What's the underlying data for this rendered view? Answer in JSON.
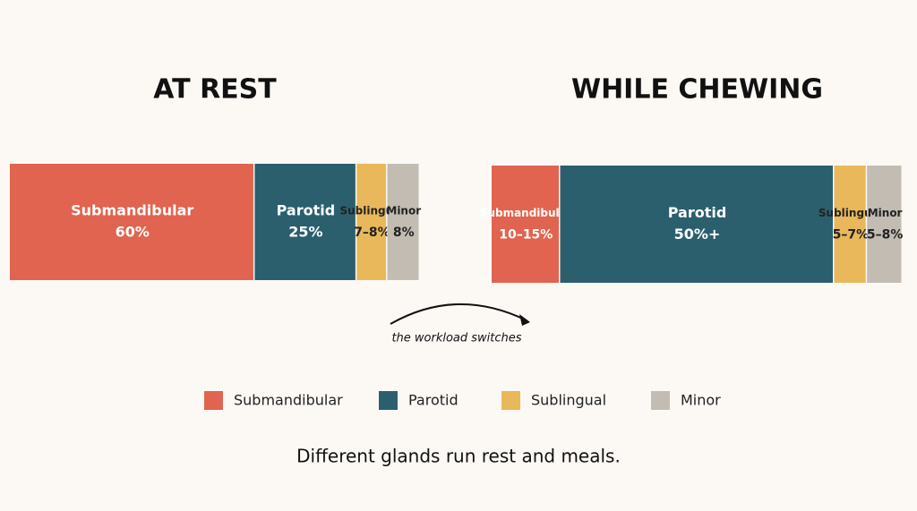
{
  "chart_data": [
    {
      "type": "bar",
      "title": "AT REST",
      "categories": [
        "Submandibular",
        "Parotid",
        "Sublingual",
        "Minor"
      ],
      "values": [
        60,
        25,
        7.5,
        8
      ],
      "value_labels": [
        "60%",
        "25%",
        "7–8%",
        "8%"
      ],
      "colors": [
        "#e0644f",
        "#2b5f6e",
        "#e9b85a",
        "#c2bcb3"
      ]
    },
    {
      "type": "bar",
      "title": "WHILE CHEWING",
      "categories": [
        "Submandibular",
        "Parotid",
        "Sublingual",
        "Minor"
      ],
      "values": [
        12.5,
        50,
        6,
        6.5
      ],
      "value_labels": [
        "10–15%",
        "50%+",
        "5–7%",
        "5–8%"
      ],
      "colors": [
        "#e0644f",
        "#2b5f6e",
        "#e9b85a",
        "#c2bcb3"
      ]
    }
  ],
  "annotation": "the workload switches",
  "caption": "Different glands run rest and meals."
}
